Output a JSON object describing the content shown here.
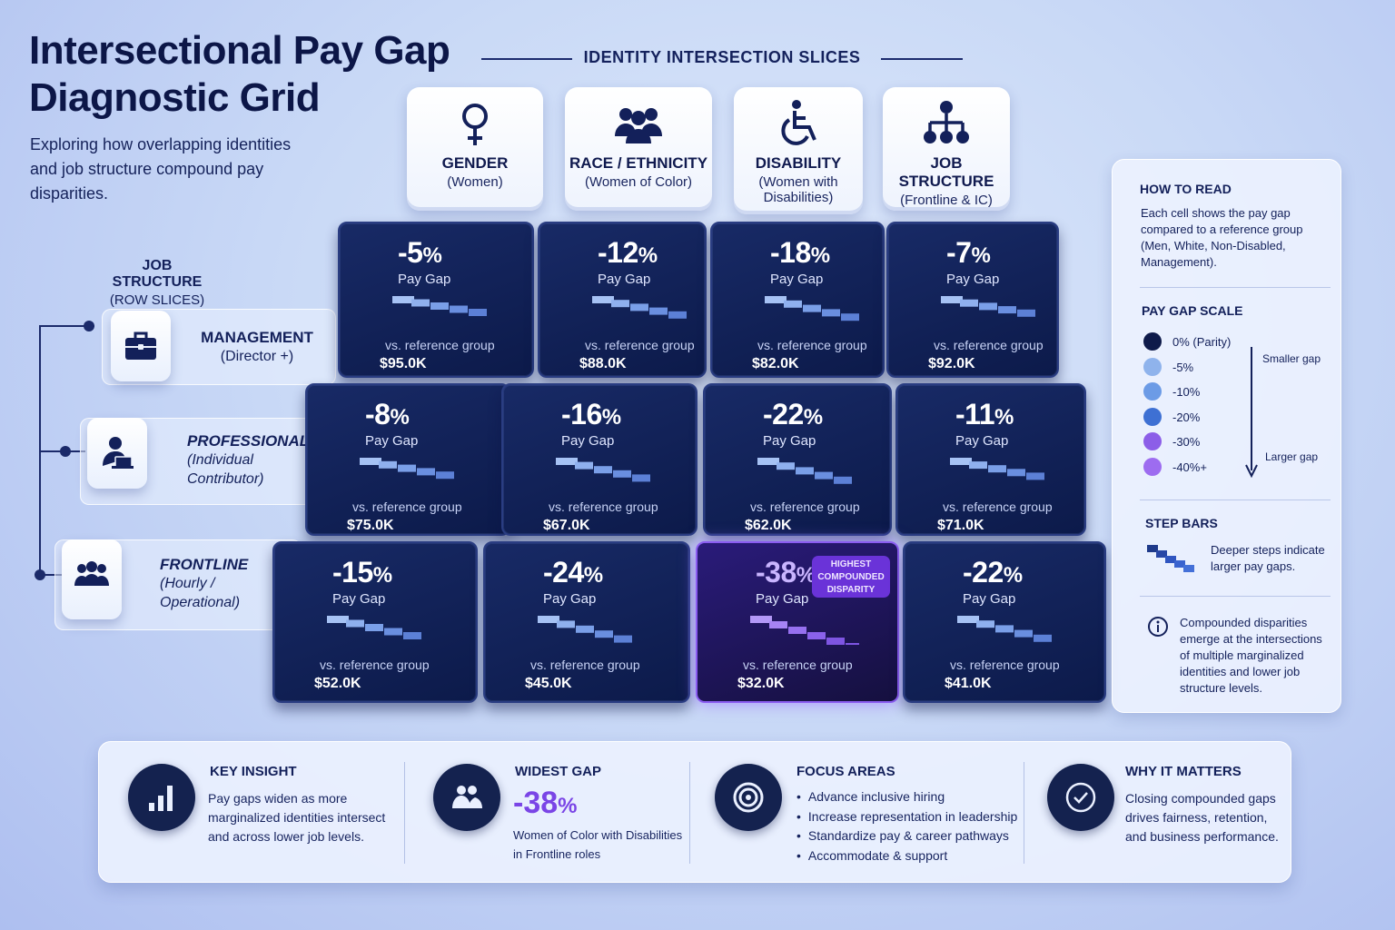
{
  "title": "Intersectional Pay Gap Diagnostic Grid",
  "subtitle": "Exploring how overlapping identities and job structure compound pay disparities.",
  "column_header": "IDENTITY INTERSECTION SLICES",
  "columns": [
    {
      "name": "GENDER",
      "sub": "(Women)",
      "icon": "female-symbol-icon"
    },
    {
      "name": "RACE / ETHNICITY",
      "sub": "(Women of Color)",
      "icon": "group-icon"
    },
    {
      "name": "DISABILITY",
      "sub": "(Women with Disabilities)",
      "icon": "wheelchair-icon"
    },
    {
      "name": "JOB STRUCTURE",
      "sub": "(Frontline & IC)",
      "icon": "hierarchy-icon"
    }
  ],
  "row_header": {
    "title": "JOB STRUCTURE",
    "sub": "(ROW SLICES)"
  },
  "rows": [
    {
      "name": "MANAGEMENT",
      "sub": "(Director +)",
      "icon": "briefcase-icon"
    },
    {
      "name": "PROFESSIONAL",
      "sub": "(Individual Contributor)",
      "icon": "laptop-user-icon"
    },
    {
      "name": "FRONTLINE",
      "sub": "(Hourly / Operational)",
      "icon": "team-icon"
    }
  ],
  "cell_labels": {
    "pay_gap": "Pay Gap",
    "vs": "vs. reference group",
    "unit": "%"
  },
  "cells": [
    [
      {
        "gap": "-5",
        "amount": "$95.0K"
      },
      {
        "gap": "-12",
        "amount": "$88.0K"
      },
      {
        "gap": "-18",
        "amount": "$82.0K"
      },
      {
        "gap": "-7",
        "amount": "$92.0K"
      }
    ],
    [
      {
        "gap": "-8",
        "amount": "$75.0K"
      },
      {
        "gap": "-16",
        "amount": "$67.0K"
      },
      {
        "gap": "-22",
        "amount": "$62.0K"
      },
      {
        "gap": "-11",
        "amount": "$71.0K"
      }
    ],
    [
      {
        "gap": "-15",
        "amount": "$52.0K"
      },
      {
        "gap": "-24",
        "amount": "$45.0K"
      },
      {
        "gap": "-38",
        "amount": "$32.0K",
        "highlight": true
      },
      {
        "gap": "-22",
        "amount": "$41.0K"
      }
    ]
  ],
  "highlight_badge": "HIGHEST COMPOUNDED DISPARITY",
  "how_to_read": {
    "title": "HOW TO READ",
    "text": "Each cell shows the pay gap compared to a reference group (Men, White,  Non-Disabled, Management).",
    "scale_title": "PAY GAP SCALE",
    "scale": [
      {
        "label": "0% (Parity)",
        "color": "#0e1a4a"
      },
      {
        "label": "-5%",
        "color": "#8fb3ec"
      },
      {
        "label": "-10%",
        "color": "#6c9be6"
      },
      {
        "label": "-20%",
        "color": "#3e70d3"
      },
      {
        "label": "-30%",
        "color": "#8c5ee8"
      },
      {
        "label": "-40%+",
        "color": "#9d6cf0"
      }
    ],
    "smaller": "Smaller gap",
    "larger": "Larger gap",
    "steps_title": "STEP BARS",
    "steps_text": "Deeper steps indicate larger pay gaps.",
    "note": "Compounded disparities emerge at the intersections of multiple marginalized identities and lower job structure levels."
  },
  "footer": {
    "key_insight": {
      "title": "KEY INSIGHT",
      "text": "Pay gaps widen as more marginalized identities intersect and across lower job levels."
    },
    "widest_gap": {
      "title": "WIDEST GAP",
      "value": "-38",
      "unit": "%",
      "text": "Women of Color with Disabilities in Frontline roles"
    },
    "focus_areas": {
      "title": "FOCUS AREAS",
      "items": [
        "Advance inclusive hiring",
        "Increase representation in leadership",
        "Standardize pay & career pathways",
        "Accommodate & support"
      ]
    },
    "why": {
      "title": "WHY IT MATTERS",
      "text": "Closing compounded gaps drives fairness, retention, and business performance."
    }
  },
  "colors": {
    "accent_purple": "#7a45e6",
    "navy": "#0c1a4a",
    "step_blue": "#7fa6ea"
  }
}
